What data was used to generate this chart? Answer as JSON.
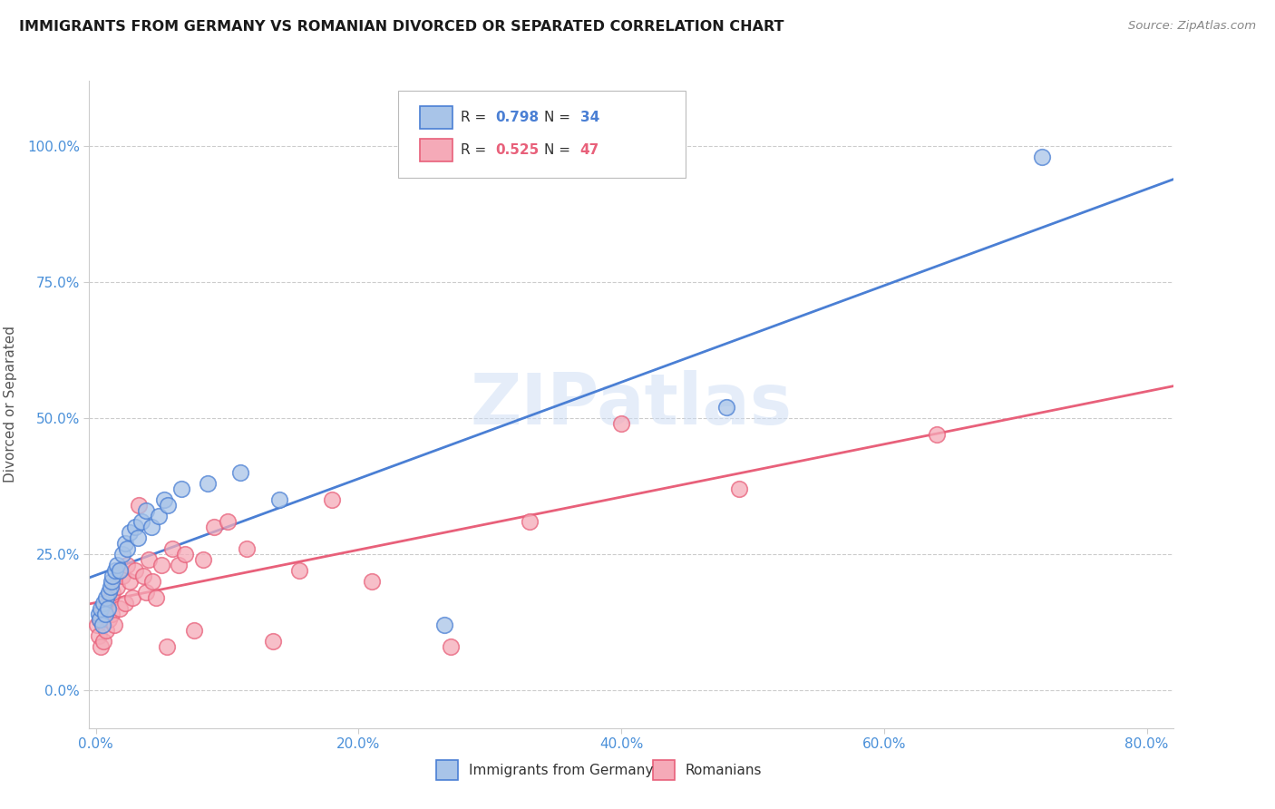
{
  "title": "IMMIGRANTS FROM GERMANY VS ROMANIAN DIVORCED OR SEPARATED CORRELATION CHART",
  "source": "Source: ZipAtlas.com",
  "xlabel_ticks": [
    "0.0%",
    "20.0%",
    "40.0%",
    "60.0%",
    "80.0%"
  ],
  "ylabel_ticks": [
    "0.0%",
    "25.0%",
    "50.0%",
    "75.0%",
    "100.0%"
  ],
  "xlim": [
    -0.005,
    0.82
  ],
  "ylim": [
    -0.07,
    1.12
  ],
  "ylabel": "Divorced or Separated",
  "legend_labels": [
    "Immigrants from Germany",
    "Romanians"
  ],
  "color_germany": "#a8c4e8",
  "color_romania": "#f5aab8",
  "line_color_germany": "#4a7fd4",
  "line_color_romania": "#e8607a",
  "background_color": "#ffffff",
  "watermark_color": "#ccddf5",
  "germany_x": [
    0.002,
    0.003,
    0.004,
    0.005,
    0.006,
    0.007,
    0.008,
    0.009,
    0.01,
    0.011,
    0.012,
    0.013,
    0.015,
    0.016,
    0.018,
    0.02,
    0.022,
    0.024,
    0.026,
    0.03,
    0.032,
    0.035,
    0.038,
    0.042,
    0.048,
    0.052,
    0.055,
    0.065,
    0.085,
    0.11,
    0.14,
    0.265,
    0.48,
    0.72
  ],
  "germany_y": [
    0.14,
    0.13,
    0.15,
    0.12,
    0.16,
    0.14,
    0.17,
    0.15,
    0.18,
    0.19,
    0.2,
    0.21,
    0.22,
    0.23,
    0.22,
    0.25,
    0.27,
    0.26,
    0.29,
    0.3,
    0.28,
    0.31,
    0.33,
    0.3,
    0.32,
    0.35,
    0.34,
    0.37,
    0.38,
    0.4,
    0.35,
    0.12,
    0.52,
    0.98
  ],
  "romania_x": [
    0.001,
    0.002,
    0.003,
    0.004,
    0.005,
    0.006,
    0.007,
    0.008,
    0.009,
    0.01,
    0.011,
    0.012,
    0.013,
    0.014,
    0.016,
    0.018,
    0.02,
    0.022,
    0.024,
    0.026,
    0.028,
    0.03,
    0.033,
    0.036,
    0.038,
    0.04,
    0.043,
    0.046,
    0.05,
    0.054,
    0.058,
    0.063,
    0.068,
    0.075,
    0.082,
    0.09,
    0.1,
    0.115,
    0.135,
    0.155,
    0.18,
    0.21,
    0.27,
    0.33,
    0.4,
    0.49,
    0.64
  ],
  "romania_y": [
    0.12,
    0.1,
    0.13,
    0.08,
    0.15,
    0.09,
    0.14,
    0.11,
    0.16,
    0.13,
    0.17,
    0.14,
    0.18,
    0.12,
    0.19,
    0.15,
    0.21,
    0.16,
    0.23,
    0.2,
    0.17,
    0.22,
    0.34,
    0.21,
    0.18,
    0.24,
    0.2,
    0.17,
    0.23,
    0.08,
    0.26,
    0.23,
    0.25,
    0.11,
    0.24,
    0.3,
    0.31,
    0.26,
    0.09,
    0.22,
    0.35,
    0.2,
    0.08,
    0.31,
    0.49,
    0.37,
    0.47
  ]
}
